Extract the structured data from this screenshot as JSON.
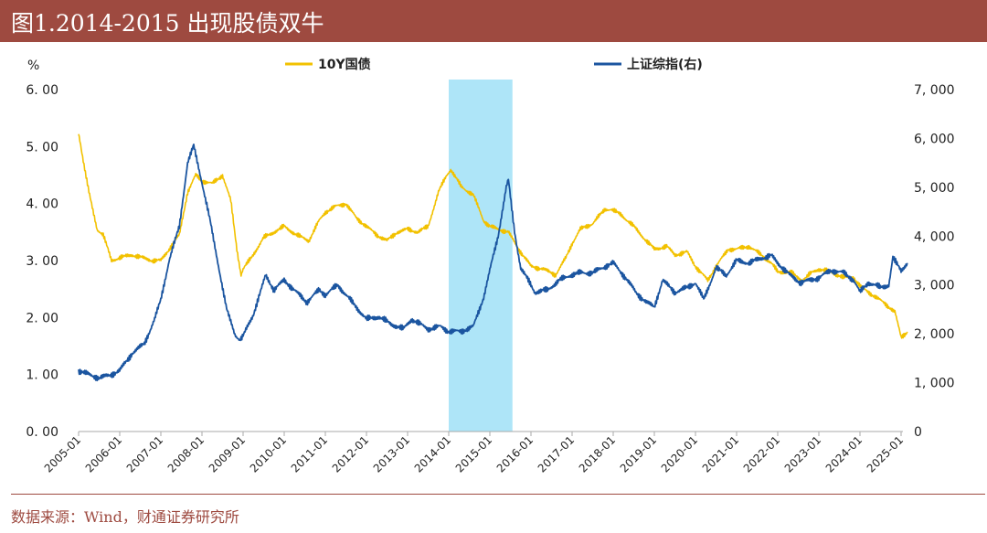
{
  "title": "图1.2014-2015 出现股债双牛",
  "source": "数据来源：Wind，财通证券研究所",
  "colors": {
    "bond": "#f2c100",
    "index": "#1b55a0",
    "highlight": "#87d8f4",
    "brand": "#9e4a40"
  },
  "chart_data": {
    "type": "line",
    "title": "图1.2014-2015 出现股债双牛",
    "left_axis": {
      "label": "%",
      "range": [
        0,
        6
      ],
      "ticks": [
        "0. 00",
        "1. 00",
        "2. 00",
        "3. 00",
        "4. 00",
        "5. 00",
        "6. 00"
      ]
    },
    "right_axis": {
      "range": [
        0,
        7000
      ],
      "ticks": [
        "0",
        "1, 000",
        "2, 000",
        "3, 000",
        "4, 000",
        "5, 000",
        "6, 000",
        "7, 000"
      ]
    },
    "x_ticks": [
      "2005-01",
      "2006-01",
      "2007-01",
      "2008-01",
      "2009-01",
      "2010-01",
      "2011-01",
      "2012-01",
      "2013-01",
      "2014-01",
      "2015-01",
      "2016-01",
      "2017-01",
      "2018-01",
      "2019-01",
      "2020-01",
      "2021-01",
      "2022-01",
      "2023-01",
      "2024-01",
      "2025-01"
    ],
    "highlight": {
      "from": 2014.0,
      "to": 2015.55
    },
    "legend": {
      "bond": "10Y国债",
      "index": "上证综指(右)"
    },
    "series": [
      {
        "name": "10Y国债",
        "axis": "left",
        "x": [
          2005.0,
          2005.08,
          2005.25,
          2005.45,
          2005.6,
          2005.8,
          2006.0,
          2006.3,
          2006.55,
          2006.8,
          2007.0,
          2007.2,
          2007.45,
          2007.65,
          2007.85,
          2008.0,
          2008.25,
          2008.5,
          2008.7,
          2008.85,
          2008.95,
          2009.0,
          2009.2,
          2009.5,
          2009.75,
          2010.0,
          2010.3,
          2010.6,
          2010.85,
          2011.0,
          2011.25,
          2011.5,
          2011.75,
          2012.0,
          2012.25,
          2012.5,
          2012.75,
          2013.0,
          2013.25,
          2013.5,
          2013.75,
          2013.95,
          2014.05,
          2014.3,
          2014.6,
          2014.85,
          2015.0,
          2015.2,
          2015.45,
          2015.7,
          2016.0,
          2016.3,
          2016.6,
          2016.85,
          2017.0,
          2017.2,
          2017.5,
          2017.8,
          2017.95,
          2018.2,
          2018.5,
          2018.8,
          2019.0,
          2019.3,
          2019.5,
          2019.8,
          2020.0,
          2020.3,
          2020.5,
          2020.8,
          2021.0,
          2021.3,
          2021.6,
          2021.85,
          2022.0,
          2022.3,
          2022.6,
          2022.85,
          2023.0,
          2023.3,
          2023.6,
          2023.85,
          2024.0,
          2024.3,
          2024.6,
          2024.85,
          2025.0,
          2025.15
        ],
        "y": [
          5.25,
          4.9,
          4.2,
          3.55,
          3.45,
          3.0,
          3.05,
          3.1,
          3.05,
          3.0,
          3.0,
          3.2,
          3.45,
          4.2,
          4.5,
          4.4,
          4.35,
          4.5,
          4.05,
          3.2,
          2.75,
          2.85,
          3.05,
          3.4,
          3.5,
          3.6,
          3.45,
          3.35,
          3.7,
          3.85,
          3.95,
          4.0,
          3.75,
          3.6,
          3.45,
          3.35,
          3.5,
          3.55,
          3.5,
          3.6,
          4.2,
          4.5,
          4.6,
          4.3,
          4.15,
          3.7,
          3.6,
          3.55,
          3.5,
          3.2,
          2.9,
          2.85,
          2.75,
          3.05,
          3.3,
          3.55,
          3.65,
          3.9,
          3.9,
          3.8,
          3.6,
          3.35,
          3.2,
          3.25,
          3.1,
          3.15,
          2.9,
          2.65,
          2.9,
          3.2,
          3.2,
          3.25,
          3.1,
          2.95,
          2.8,
          2.8,
          2.65,
          2.8,
          2.85,
          2.8,
          2.7,
          2.7,
          2.55,
          2.4,
          2.25,
          2.1,
          1.65,
          1.75
        ]
      },
      {
        "name": "上证综指(右)",
        "axis": "right",
        "x": [
          2005.0,
          2005.3,
          2005.5,
          2005.75,
          2006.0,
          2006.3,
          2006.6,
          2006.85,
          2007.0,
          2007.2,
          2007.45,
          2007.65,
          2007.8,
          2008.0,
          2008.2,
          2008.4,
          2008.6,
          2008.8,
          2008.92,
          2009.0,
          2009.25,
          2009.55,
          2009.75,
          2010.0,
          2010.3,
          2010.55,
          2010.85,
          2011.0,
          2011.3,
          2011.55,
          2011.85,
          2012.0,
          2012.3,
          2012.6,
          2012.9,
          2013.1,
          2013.5,
          2013.8,
          2014.0,
          2014.3,
          2014.6,
          2014.85,
          2015.0,
          2015.2,
          2015.4,
          2015.45,
          2015.6,
          2015.75,
          2016.0,
          2016.1,
          2016.4,
          2016.7,
          2016.95,
          2017.2,
          2017.5,
          2017.85,
          2018.0,
          2018.3,
          2018.55,
          2018.8,
          2019.0,
          2019.2,
          2019.5,
          2019.8,
          2020.0,
          2020.2,
          2020.5,
          2020.75,
          2021.0,
          2021.3,
          2021.6,
          2021.85,
          2022.0,
          2022.3,
          2022.55,
          2022.8,
          2023.0,
          2023.3,
          2023.6,
          2023.85,
          2024.0,
          2024.2,
          2024.5,
          2024.7,
          2024.8,
          2025.0,
          2025.15
        ],
        "y": [
          1250,
          1150,
          1100,
          1150,
          1250,
          1600,
          1800,
          2300,
          2700,
          3500,
          4200,
          5500,
          5850,
          5100,
          4300,
          3400,
          2500,
          2000,
          1850,
          1950,
          2400,
          3200,
          2900,
          3100,
          2850,
          2650,
          2900,
          2800,
          3000,
          2750,
          2450,
          2300,
          2350,
          2200,
          2100,
          2300,
          2100,
          2150,
          2050,
          2050,
          2150,
          2750,
          3300,
          4000,
          5000,
          5150,
          4100,
          3350,
          3000,
          2850,
          2900,
          3100,
          3200,
          3250,
          3250,
          3400,
          3450,
          3150,
          2850,
          2650,
          2550,
          3100,
          2850,
          2950,
          3050,
          2700,
          3350,
          3200,
          3500,
          3450,
          3550,
          3600,
          3450,
          3200,
          3050,
          3100,
          3150,
          3300,
          3250,
          3100,
          2850,
          3050,
          2950,
          3000,
          3550,
          3300,
          3450
        ]
      }
    ]
  }
}
